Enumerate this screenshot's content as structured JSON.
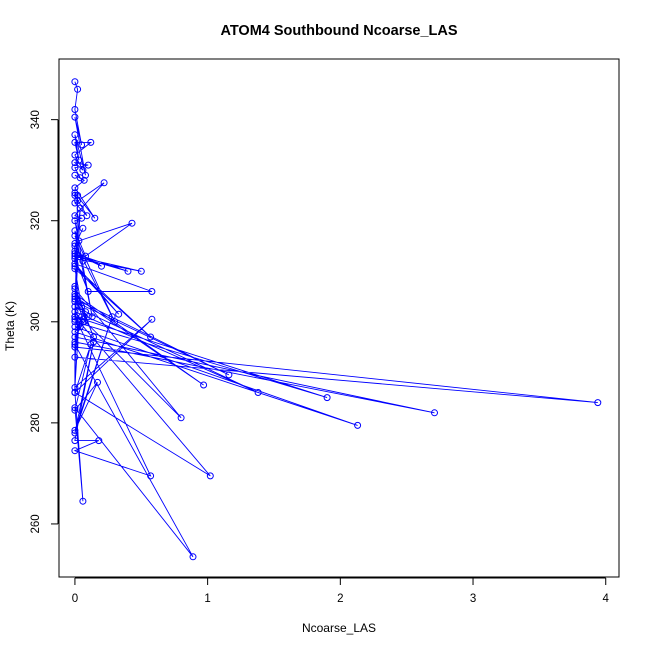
{
  "chart_data": {
    "type": "line",
    "title": "ATOM4 Southbound Ncoarse_LAS",
    "xlabel": "Ncoarse_LAS",
    "ylabel": "Theta (K)",
    "xlim": [
      -0.12,
      4.1
    ],
    "ylim": [
      249.5,
      352
    ],
    "xticks": [
      0,
      1,
      2,
      3,
      4
    ],
    "yticks": [
      260,
      280,
      300,
      320,
      340
    ],
    "grid": false,
    "legend": "none",
    "color": "#0000ff",
    "marker": "open-circle",
    "series": [
      {
        "x": [
          0.0,
          0.02,
          0.0,
          0.05,
          0.0,
          0.08,
          0.0,
          0.03,
          0.0,
          0.12,
          0.0,
          0.06,
          0.0,
          0.1,
          0.0,
          0.04,
          0.0,
          0.07,
          0.0,
          0.15,
          0.0,
          0.02,
          0.0,
          0.09,
          0.0,
          0.22,
          0.0,
          0.05,
          0.0,
          0.13,
          0.0,
          0.08,
          0.43,
          0.03,
          0.0,
          0.3,
          0.0,
          0.06,
          0.0,
          0.2,
          0.0,
          0.4,
          0.0,
          0.5,
          0.0,
          0.1,
          0.58,
          0.0,
          0.33,
          0.0,
          0.57,
          0.0,
          0.05,
          0.0,
          0.14,
          0.0,
          0.8,
          0.06,
          0.0,
          0.97,
          0.0,
          0.08,
          0.0,
          1.16,
          0.0,
          0.1,
          0.0,
          1.38,
          0.0,
          0.06,
          0.0,
          1.9,
          0.0,
          0.04,
          0.0,
          2.13,
          0.0,
          0.07,
          0.0,
          2.71,
          0.0,
          0.05,
          0.0,
          3.94,
          0.0,
          0.03,
          0.0,
          0.58,
          0.0,
          0.12,
          0.0,
          0.17,
          0.0,
          0.28,
          0.0,
          0.14,
          0.0,
          0.18,
          0.0,
          0.57,
          0.0,
          1.02,
          0.0,
          0.06,
          0.0,
          0.89,
          0.0,
          0.0,
          0.02,
          0.0,
          0.0,
          0.04,
          0.0,
          0.0,
          0.06
        ],
        "y": [
          347.5,
          346.0,
          342.0,
          335.0,
          340.5,
          329.0,
          337.0,
          332.0,
          335.5,
          335.5,
          333.0,
          330.0,
          331.5,
          331.0,
          330.5,
          328.5,
          329.0,
          328.0,
          326.5,
          320.5,
          325.5,
          324.0,
          325.0,
          321.0,
          323.5,
          327.5,
          321.0,
          320.5,
          320.0,
          301.0,
          318.0,
          313.0,
          319.5,
          316.0,
          317.0,
          300.0,
          315.5,
          312.0,
          314.0,
          311.0,
          313.5,
          310.0,
          313.0,
          310.0,
          312.5,
          306.0,
          306.0,
          311.5,
          301.5,
          311.0,
          297.0,
          310.5,
          303.0,
          307.0,
          297.0,
          306.5,
          281.0,
          300.5,
          305.5,
          287.5,
          305.0,
          302.0,
          304.5,
          289.5,
          304.0,
          301.0,
          303.0,
          286.0,
          302.0,
          300.0,
          301.0,
          285.0,
          300.0,
          299.0,
          299.0,
          279.5,
          298.0,
          300.0,
          297.0,
          282.0,
          296.0,
          301.0,
          295.0,
          284.0,
          293.0,
          300.0,
          287.0,
          300.5,
          286.0,
          295.5,
          282.5,
          288.0,
          278.5,
          301.0,
          278.0,
          296.0,
          276.5,
          276.5,
          274.5,
          269.5,
          301.0,
          269.5,
          286.0,
          264.5,
          283.0,
          253.5,
          295.5,
          286.0,
          325.0,
          301.0,
          300.5,
          322.5,
          311.5,
          315.0,
          318.5
        ]
      }
    ]
  }
}
